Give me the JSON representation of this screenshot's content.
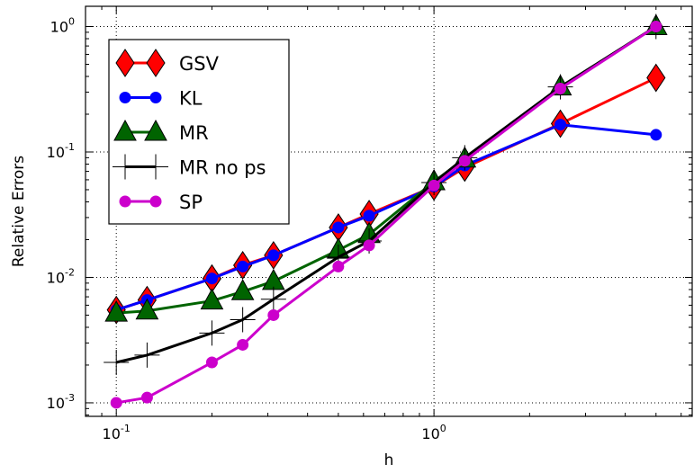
{
  "chart_data": {
    "type": "line",
    "xscale": "log",
    "yscale": "log",
    "xlabel": "h",
    "ylabel": "Relative Errors",
    "xlim": [
      0.08,
      6.5
    ],
    "ylim": [
      0.00078,
      1.45
    ],
    "grid": true,
    "legend_position": "top-left",
    "x_ticks": [
      {
        "value": 0.1,
        "base": "10",
        "exp": "-1"
      },
      {
        "value": 1,
        "base": "10",
        "exp": "0"
      }
    ],
    "y_ticks": [
      {
        "value": 0.001,
        "base": "10",
        "exp": "-3"
      },
      {
        "value": 0.01,
        "base": "10",
        "exp": "-2"
      },
      {
        "value": 0.1,
        "base": "10",
        "exp": "-1"
      },
      {
        "value": 1,
        "base": "10",
        "exp": "0"
      }
    ],
    "series": [
      {
        "name": "GSV",
        "color": "#ff0000",
        "marker": "diamond",
        "x": [
          0.1,
          0.125,
          0.2,
          0.25,
          0.3125,
          0.5,
          0.625,
          1.0,
          1.25,
          2.5,
          5.0
        ],
        "y": [
          0.0055,
          0.0066,
          0.0098,
          0.0125,
          0.015,
          0.025,
          0.032,
          0.053,
          0.075,
          0.168,
          0.39
        ]
      },
      {
        "name": "KL",
        "color": "#0000ff",
        "marker": "circle",
        "x": [
          0.1,
          0.125,
          0.2,
          0.25,
          0.3125,
          0.5,
          0.625,
          1.0,
          1.25,
          2.5,
          5.0
        ],
        "y": [
          0.0055,
          0.0066,
          0.0098,
          0.0122,
          0.015,
          0.025,
          0.031,
          0.053,
          0.078,
          0.165,
          0.137
        ]
      },
      {
        "name": "MR",
        "color": "#006400",
        "marker": "triangle",
        "x": [
          0.1,
          0.125,
          0.2,
          0.25,
          0.3125,
          0.5,
          0.625,
          1.0,
          1.25,
          2.5,
          5.0
        ],
        "y": [
          0.0052,
          0.0054,
          0.0065,
          0.0077,
          0.0093,
          0.0165,
          0.022,
          0.058,
          0.088,
          0.33,
          1.0
        ]
      },
      {
        "name": "MR no ps",
        "color": "#000000",
        "marker": "plus",
        "x": [
          0.1,
          0.125,
          0.2,
          0.25,
          0.3125,
          0.5,
          0.625,
          1.0,
          1.25,
          2.5,
          5.0
        ],
        "y": [
          0.0021,
          0.0024,
          0.0036,
          0.0046,
          0.0067,
          0.0145,
          0.0195,
          0.057,
          0.09,
          0.33,
          1.0
        ]
      },
      {
        "name": "SP",
        "color": "#cc00cc",
        "marker": "circle",
        "x": [
          0.1,
          0.125,
          0.2,
          0.25,
          0.3125,
          0.5,
          0.625,
          1.0,
          1.25,
          2.5,
          5.0
        ],
        "y": [
          0.001,
          0.0011,
          0.0021,
          0.0029,
          0.005,
          0.0122,
          0.018,
          0.054,
          0.085,
          0.32,
          1.0
        ]
      }
    ]
  }
}
